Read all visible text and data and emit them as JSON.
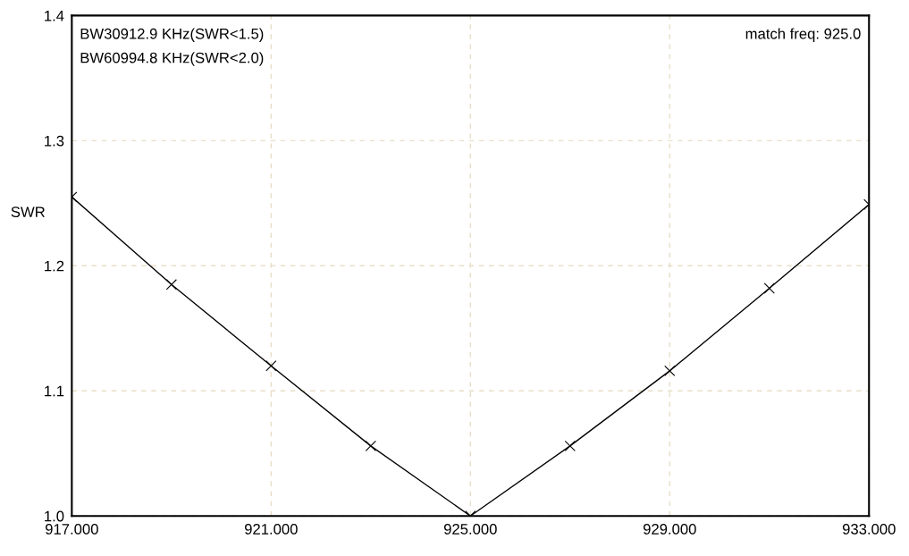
{
  "chart_data": {
    "type": "line",
    "ylabel": "SWR",
    "x": [
      917,
      919,
      921,
      923,
      925,
      927,
      929,
      931,
      933
    ],
    "series": [
      {
        "color": "#000000",
        "values": [
          1.255,
          1.185,
          1.12,
          1.056,
          1.0,
          1.056,
          1.116,
          1.182,
          1.249
        ]
      }
    ],
    "xlim": [
      917,
      933
    ],
    "ylim": [
      1.0,
      1.4
    ],
    "xticks": [
      {
        "value": 917,
        "label": "917.000"
      },
      {
        "value": 921,
        "label": "921.000"
      },
      {
        "value": 925,
        "label": "925.000"
      },
      {
        "value": 929,
        "label": "929.000"
      },
      {
        "value": 933,
        "label": "933.000"
      }
    ],
    "yticks": [
      {
        "value": 1.0,
        "label": "1.0"
      },
      {
        "value": 1.1,
        "label": "1.1"
      },
      {
        "value": 1.2,
        "label": "1.2"
      },
      {
        "value": 1.3,
        "label": "1.3"
      },
      {
        "value": 1.4,
        "label": "1.4"
      }
    ],
    "annotations": [
      "BW30912.9 KHz(SWR<1.5)",
      "BW60994.8 KHz(SWR<2.0)",
      "match freq: 925.0"
    ],
    "grid": true,
    "marker": "cross",
    "line_style": "solid"
  }
}
